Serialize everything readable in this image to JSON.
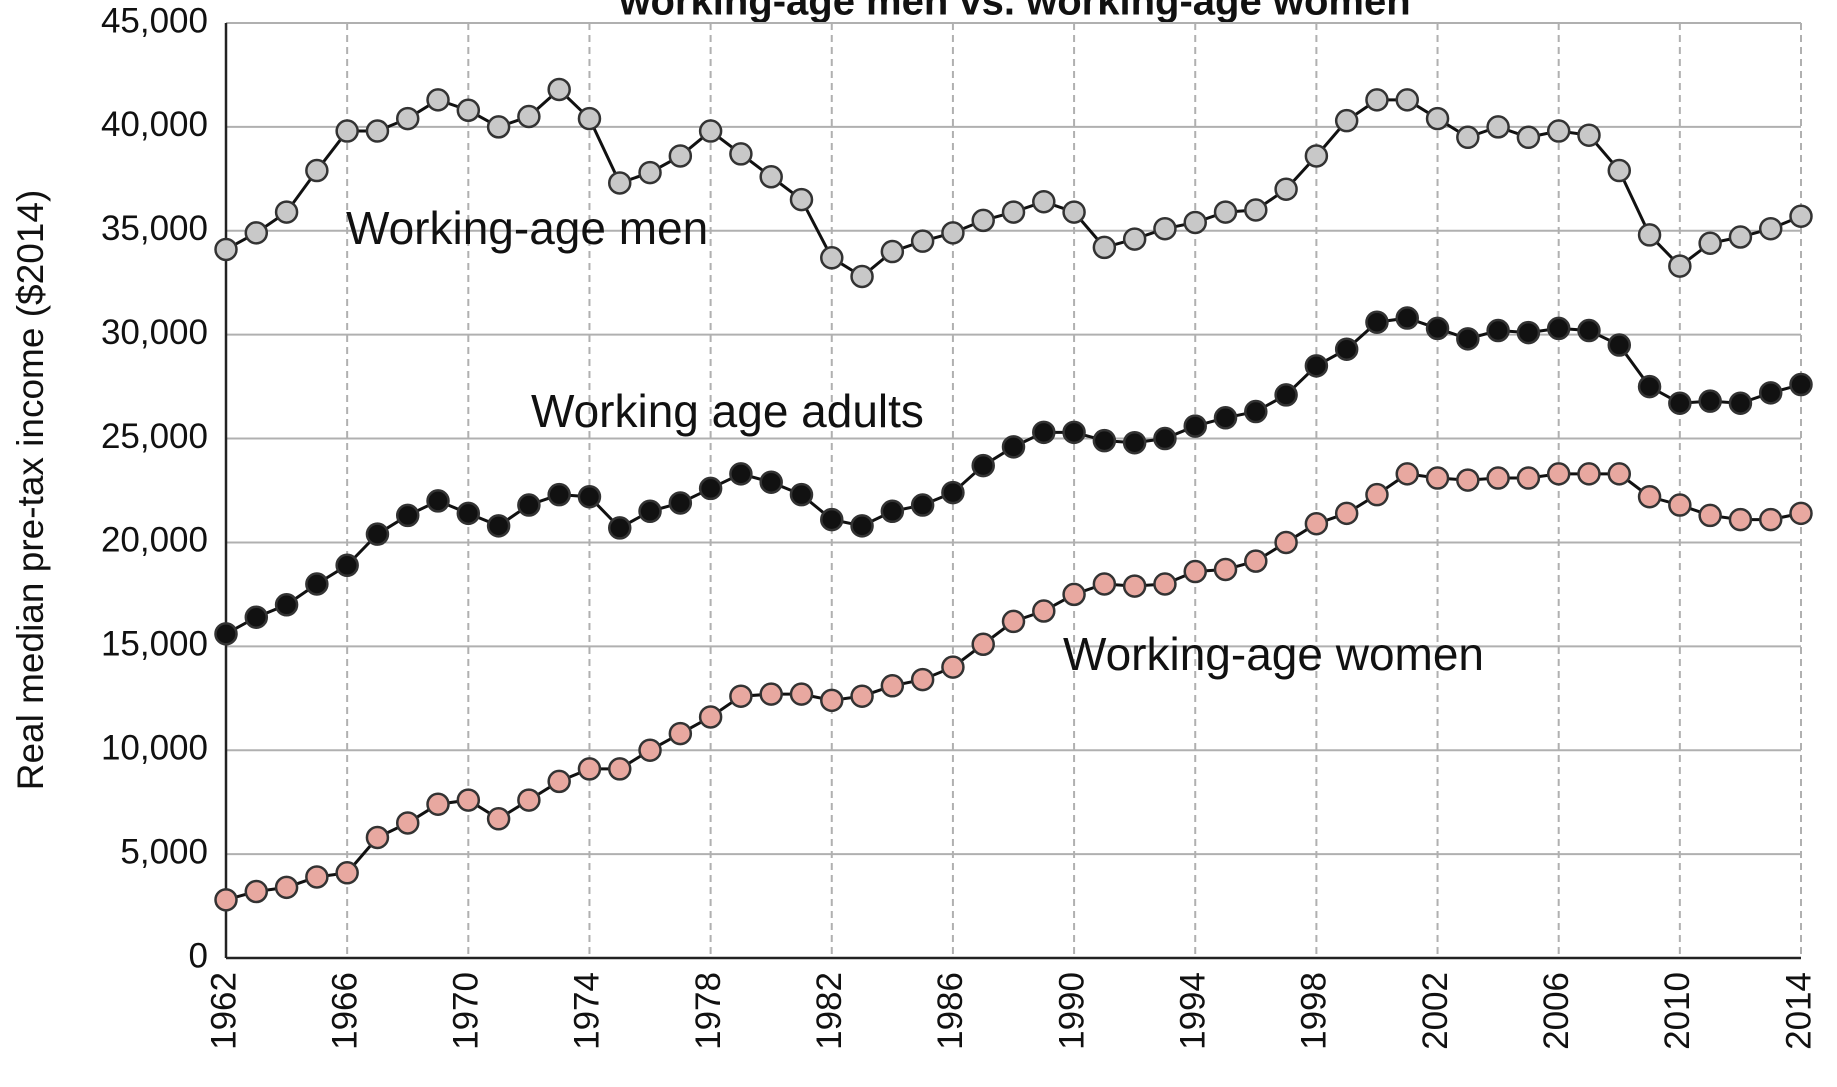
{
  "chart_data": {
    "type": "line",
    "title": "working-age men vs. working-age women",
    "y_label": "Real median pre-tax income ($2014)",
    "x": [
      1962,
      1963,
      1964,
      1965,
      1966,
      1967,
      1968,
      1969,
      1970,
      1971,
      1972,
      1973,
      1974,
      1975,
      1976,
      1977,
      1978,
      1979,
      1980,
      1981,
      1982,
      1983,
      1984,
      1985,
      1986,
      1987,
      1988,
      1989,
      1990,
      1991,
      1992,
      1993,
      1994,
      1995,
      1996,
      1997,
      1998,
      1999,
      2000,
      2001,
      2002,
      2003,
      2004,
      2005,
      2006,
      2007,
      2008,
      2009,
      2010,
      2011,
      2012,
      2013,
      2014
    ],
    "series": [
      {
        "name": "Working-age men",
        "color": "#c8c8c8",
        "values": [
          34100,
          34900,
          35900,
          37900,
          39800,
          39800,
          40400,
          41300,
          40800,
          40000,
          40500,
          41800,
          40400,
          37300,
          37800,
          38600,
          39800,
          38700,
          37600,
          36500,
          33700,
          32800,
          34000,
          34500,
          34900,
          35500,
          35900,
          36400,
          35900,
          34200,
          34600,
          35100,
          35400,
          35900,
          36000,
          37000,
          38600,
          40300,
          41300,
          41300,
          40400,
          39500,
          40000,
          39500,
          39800,
          39600,
          37900,
          34800,
          33300,
          34400,
          34700,
          35100,
          35700
        ]
      },
      {
        "name": "Working age adults",
        "color": "#111111",
        "values": [
          15600,
          16400,
          17000,
          18000,
          18900,
          20400,
          21300,
          22000,
          21400,
          20800,
          21800,
          22300,
          22200,
          20700,
          21500,
          21900,
          22600,
          23300,
          22900,
          22300,
          21100,
          20800,
          21500,
          21800,
          22400,
          23700,
          24600,
          25300,
          25300,
          24900,
          24800,
          25000,
          25600,
          26000,
          26300,
          27100,
          28500,
          29300,
          30600,
          30800,
          30300,
          29800,
          30200,
          30100,
          30300,
          30200,
          29500,
          27500,
          26700,
          26800,
          26700,
          27200,
          27600
        ]
      },
      {
        "name": "Working-age women",
        "color": "#e8a8a0",
        "values": [
          2800,
          3200,
          3400,
          3900,
          4100,
          5800,
          6500,
          7400,
          7600,
          6700,
          7600,
          8500,
          9100,
          9100,
          10000,
          10800,
          11600,
          12600,
          12700,
          12700,
          12400,
          12600,
          13100,
          13400,
          14000,
          15100,
          16200,
          16700,
          17500,
          18000,
          17900,
          18000,
          18600,
          18700,
          19100,
          20000,
          20900,
          21400,
          22300,
          23300,
          23100,
          23000,
          23100,
          23100,
          23300,
          23300,
          23300,
          22200,
          21800,
          21300,
          21100,
          21100,
          21400
        ]
      }
    ],
    "xlim": [
      1962,
      2014
    ],
    "xticks": [
      1962,
      1966,
      1970,
      1974,
      1978,
      1982,
      1986,
      1990,
      1994,
      1998,
      2002,
      2006,
      2010,
      2014
    ],
    "ylim": [
      0,
      45000
    ],
    "yticks": [
      0,
      {
        "value": 5000,
        "label": "5,000"
      },
      {
        "value": 10000,
        "label": "10,000"
      },
      {
        "value": 15000,
        "label": "15,000"
      },
      {
        "value": 20000,
        "label": "20,000"
      },
      {
        "value": 25000,
        "label": "25,000"
      },
      {
        "value": 30000,
        "label": "30,000"
      },
      {
        "value": 35000,
        "label": "35,000"
      },
      {
        "value": 40000,
        "label": "40,000"
      },
      {
        "value": 45000,
        "label": "45,000"
      }
    ],
    "grid": true
  }
}
